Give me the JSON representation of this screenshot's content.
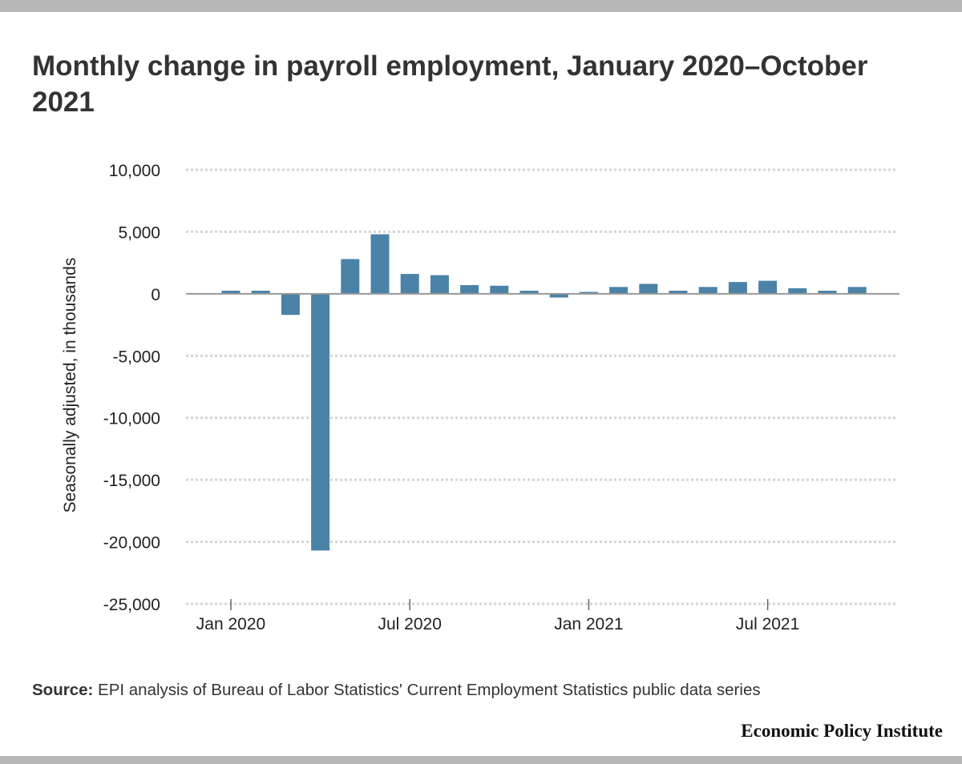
{
  "title": "Monthly change in payroll employment, January 2020–October 2021",
  "source": {
    "label": "Source:",
    "text": " EPI analysis of Bureau of Labor Statistics' Current Employment Statistics public data series"
  },
  "brand": "Economic Policy Institute",
  "colors": {
    "bar": "#4a82a8",
    "zero_line": "#999999",
    "grid": "#d4d4d4",
    "frame": "#b8b8b8"
  },
  "chart_data": {
    "type": "bar",
    "title": "Monthly change in payroll employment, January 2020–October 2021",
    "xlabel": "",
    "ylabel": "Seasonally adjusted, in thousands",
    "ylim": [
      -25000,
      10000
    ],
    "yticks": [
      10000,
      5000,
      0,
      -5000,
      -10000,
      -15000,
      -20000,
      -25000
    ],
    "ytick_labels": [
      "10,000",
      "5,000",
      "0",
      "-5,000",
      "-10,000",
      "-15,000",
      "-20,000",
      "-25,000"
    ],
    "xtick_labels": [
      {
        "index": 0,
        "label": "Jan 2020"
      },
      {
        "index": 6,
        "label": "Jul 2020"
      },
      {
        "index": 12,
        "label": "Jan 2021"
      },
      {
        "index": 18,
        "label": "Jul 2021"
      }
    ],
    "grid": true,
    "categories": [
      "Jan 2020",
      "Feb 2020",
      "Mar 2020",
      "Apr 2020",
      "May 2020",
      "Jun 2020",
      "Jul 2020",
      "Aug 2020",
      "Sep 2020",
      "Oct 2020",
      "Nov 2020",
      "Dec 2020",
      "Jan 2021",
      "Feb 2021",
      "Mar 2021",
      "Apr 2021",
      "May 2021",
      "Jun 2021",
      "Jul 2021",
      "Aug 2021",
      "Sep 2021",
      "Oct 2021"
    ],
    "values": [
      250,
      250,
      -1700,
      -20700,
      2800,
      4800,
      1600,
      1500,
      700,
      650,
      250,
      -300,
      150,
      550,
      800,
      250,
      550,
      950,
      1050,
      450,
      250,
      550
    ]
  }
}
